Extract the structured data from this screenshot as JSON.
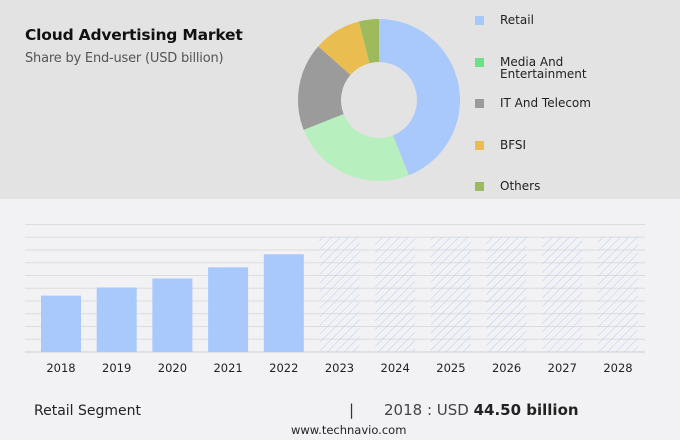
{
  "header": {
    "title": "Cloud Advertising Market",
    "subtitle": "Share by End-user (USD billion)"
  },
  "legend": [
    {
      "label": "Retail",
      "color": "#a9c8fc"
    },
    {
      "label": "Media And",
      "label2": "Entertainment",
      "color": "#6ee08a"
    },
    {
      "label": "IT And Telecom",
      "color": "#9b9b9b"
    },
    {
      "label": "BFSI",
      "color": "#e9bd50"
    },
    {
      "label": "Others",
      "color": "#9dbb5c"
    }
  ],
  "footer": {
    "segment_label": "Retail Segment",
    "separator": "|",
    "year_prefix": "2018 : USD ",
    "value_text": "44.50 billion",
    "website": "www.technavio.com"
  },
  "chart_data": [
    {
      "type": "pie",
      "title": "Cloud Advertising Market",
      "subtitle": "Share by End-user (USD billion)",
      "donut": true,
      "categories": [
        "Retail",
        "Media And Entertainment",
        "IT And Telecom",
        "BFSI",
        "Others"
      ],
      "values": [
        44,
        25,
        17.5,
        9.5,
        4
      ],
      "colors": [
        "#a9c8fc",
        "#b7efbe",
        "#9b9b9b",
        "#e9bd50",
        "#9dbb5c"
      ],
      "legend_position": "right"
    },
    {
      "type": "bar",
      "title": "Retail Segment",
      "categories": [
        "2018",
        "2019",
        "2020",
        "2021",
        "2022",
        "2023",
        "2024",
        "2025",
        "2026",
        "2027",
        "2028"
      ],
      "values": [
        44.5,
        50.9,
        58.0,
        66.8,
        77.1,
        null,
        null,
        null,
        null,
        null,
        null
      ],
      "forecast_years": [
        "2023",
        "2024",
        "2025",
        "2026",
        "2027",
        "2028"
      ],
      "forecast_style": "hatched",
      "bar_color": "#a9c8fc",
      "xlabel": "",
      "ylabel": "",
      "ylim": [
        0,
        100
      ],
      "grid": true,
      "annotation": "2018 : USD 44.50 billion"
    }
  ]
}
